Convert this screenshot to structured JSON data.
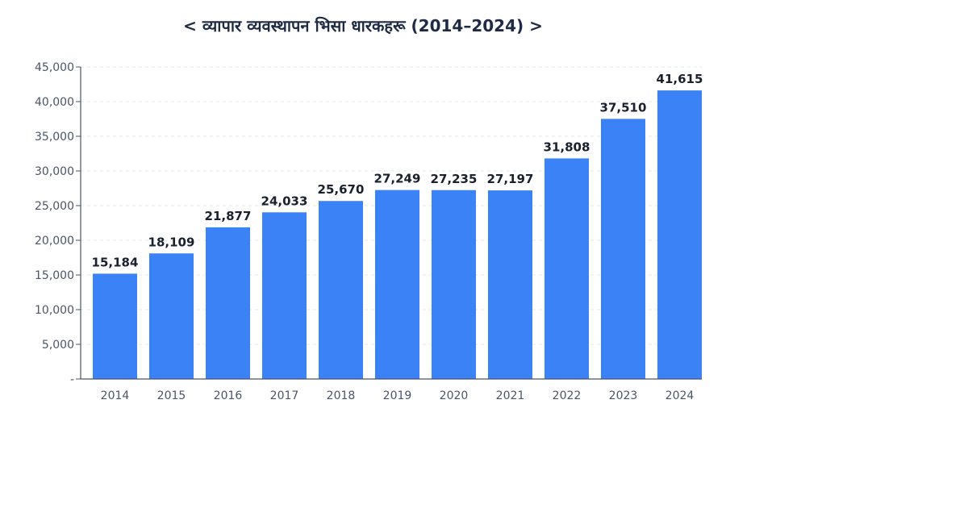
{
  "chart_data": {
    "type": "bar",
    "title": "< व्यापार व्यवस्थापन भिसा धारकहरू (2014–2024) >",
    "xlabel": "",
    "ylabel": "",
    "categories": [
      "2014",
      "2015",
      "2016",
      "2017",
      "2018",
      "2019",
      "2020",
      "2021",
      "2022",
      "2023",
      "2024"
    ],
    "values": [
      15184,
      18109,
      21877,
      24033,
      25670,
      27249,
      27235,
      27197,
      31808,
      37510,
      41615
    ],
    "value_labels": [
      "15,184",
      "18,109",
      "21,877",
      "24,033",
      "25,670",
      "27,249",
      "27,235",
      "27,197",
      "31,808",
      "37,510",
      "41,615"
    ],
    "ylim": [
      0,
      45000
    ],
    "yticks": [
      0,
      5000,
      10000,
      15000,
      20000,
      25000,
      30000,
      35000,
      40000,
      45000
    ],
    "ytick_labels": [
      "-",
      "5,000",
      "10,000",
      "15,000",
      "20,000",
      "25,000",
      "30,000",
      "35,000",
      "40,000",
      "45,000"
    ],
    "grid": true,
    "bar_color": "#3b82f6",
    "axis_color": "#4a5568",
    "grid_color": "#e2e8f0"
  }
}
